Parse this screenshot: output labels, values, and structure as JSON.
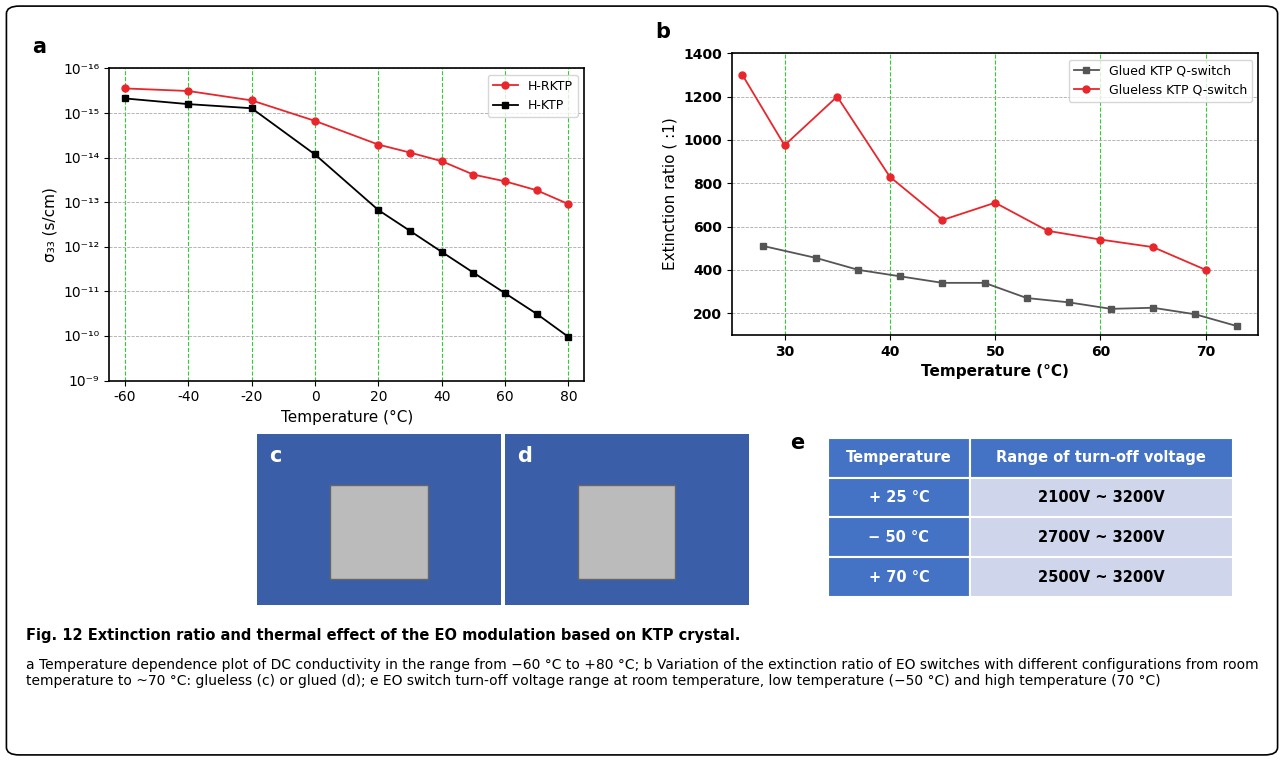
{
  "chart_data": [
    {
      "type": "line",
      "panel": "a",
      "log": "y",
      "x_label": "Temperature (°C)",
      "y_label": "σ₃₃ (s/cm)",
      "x": [
        -60,
        -40,
        -20,
        0,
        20,
        30,
        40,
        50,
        60,
        70,
        80
      ],
      "series": [
        {
          "name": "H-RKTP",
          "color": "#e8262b",
          "marker": "circle",
          "values": [
            2.8e-16,
            3.2e-16,
            5.2e-16,
            1.5e-15,
            5.1e-15,
            7.7e-15,
            1.2e-14,
            2.4e-14,
            3.4e-14,
            5.4e-14,
            1.1e-13
          ]
        },
        {
          "name": "H-KTP",
          "color": "#000000",
          "marker": "square",
          "values": [
            4.7e-16,
            6.3e-16,
            7.8e-16,
            8.5e-15,
            1.5e-13,
            4.4e-13,
            1.3e-12,
            3.8e-12,
            1.1e-11,
            3.2e-11,
            1.05e-10
          ]
        }
      ],
      "xlim": [
        -65,
        85
      ],
      "xticks": [
        -60,
        -40,
        -20,
        0,
        20,
        40,
        60,
        80
      ],
      "ylim": [
        1e-09,
        1e-16
      ],
      "yticks": [
        {
          "value": 1e-16,
          "label": "10⁻¹⁶"
        },
        {
          "value": 1e-15,
          "label": "10⁻¹⁵"
        },
        {
          "value": 1e-14,
          "label": "10⁻¹⁴"
        },
        {
          "value": 1e-13,
          "label": "10⁻¹³"
        },
        {
          "value": 1e-12,
          "label": "10⁻¹²"
        },
        {
          "value": 1e-11,
          "label": "10⁻¹¹"
        },
        {
          "value": 1e-10,
          "label": "10⁻¹⁰"
        },
        {
          "value": 1e-09,
          "label": "10⁻⁹"
        }
      ],
      "grid": true,
      "legend": "upper right"
    },
    {
      "type": "line",
      "panel": "b",
      "x_label": "Temperature (°C)",
      "y_label": "Extinction ratio ( :1)",
      "series": [
        {
          "name": "Glued KTP Q-switch",
          "color": "#555555",
          "marker": "square",
          "x": [
            28,
            33,
            37,
            41,
            45,
            49,
            53,
            57,
            61,
            65,
            69,
            73
          ],
          "values": [
            510,
            455,
            400,
            370,
            340,
            340,
            270,
            250,
            220,
            225,
            195,
            140
          ]
        },
        {
          "name": "Glueless KTP Q-switch",
          "color": "#e8262b",
          "marker": "circle",
          "x": [
            26,
            30,
            35,
            40,
            45,
            50,
            55,
            60,
            65,
            70
          ],
          "values": [
            1300,
            975,
            1200,
            830,
            630,
            710,
            580,
            540,
            505,
            400
          ]
        }
      ],
      "xlim": [
        25,
        75
      ],
      "xticks": [
        30,
        40,
        50,
        60,
        70
      ],
      "ylim": [
        100,
        1400
      ],
      "yticks": [
        200,
        400,
        600,
        800,
        1000,
        1200,
        1400
      ],
      "grid": true,
      "legend": "upper right"
    }
  ],
  "photos": [
    {
      "label": "c"
    },
    {
      "label": "d"
    }
  ],
  "table": {
    "label": "e",
    "header": [
      "Temperature",
      "Range of turn-off voltage"
    ],
    "rows": [
      [
        "+ 25 °C",
        "2100V ~ 3200V"
      ],
      [
        "− 50 °C",
        "2700V ~ 3200V"
      ],
      [
        "+ 70 °C",
        "2500V ~ 3200V"
      ]
    ]
  },
  "caption": {
    "title": "Fig. 12 Extinction ratio and thermal effect of the EO modulation based on KTP crystal.",
    "text": "a Temperature dependence plot of DC conductivity in the range from −60 °C to +80 °C; b Variation of the extinction ratio of EO switches with different configurations from room temperature to ~70 °C: glueless (c) or glued (d); e EO switch turn-off voltage range at room temperature, low temperature (−50 °C) and high temperature (70 °C)"
  }
}
